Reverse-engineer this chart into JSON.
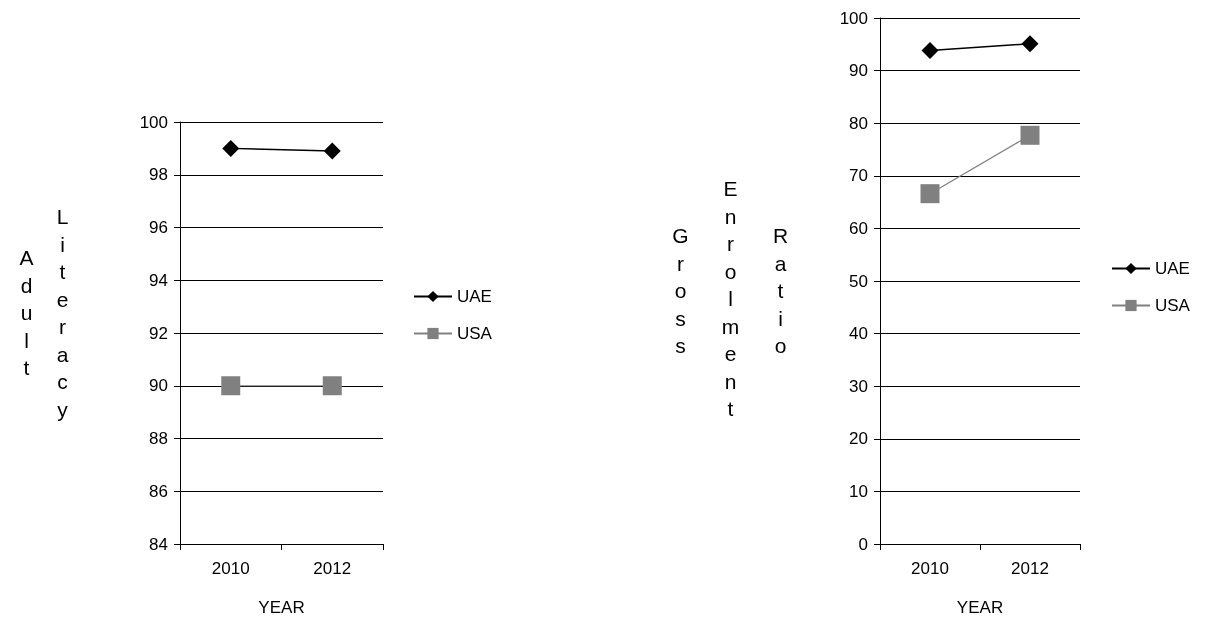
{
  "chart_data": [
    {
      "type": "line",
      "categories": [
        "2010",
        "2012"
      ],
      "xlabel": "YEAR",
      "ylabel": "Adult Literacy",
      "ylim": [
        84,
        100
      ],
      "yticks": [
        84,
        86,
        88,
        90,
        92,
        94,
        96,
        98,
        100
      ],
      "grid": "y",
      "legend": "right",
      "series": [
        {
          "name": "UAE",
          "color": "#000000",
          "marker": "diamond",
          "values": [
            99.0,
            98.9
          ]
        },
        {
          "name": "USA",
          "color": "#808080",
          "marker": "square",
          "values": [
            90.0,
            90.0
          ]
        }
      ]
    },
    {
      "type": "line",
      "categories": [
        "2010",
        "2012"
      ],
      "xlabel": "YEAR",
      "ylabel": "Gross Enrolment Ratio",
      "ylim": [
        0,
        100
      ],
      "yticks": [
        0,
        10,
        20,
        30,
        40,
        50,
        60,
        70,
        80,
        90,
        100
      ],
      "grid": "y",
      "legend": "right",
      "series": [
        {
          "name": "UAE",
          "color": "#000000",
          "marker": "diamond",
          "values": [
            93.8,
            95.1
          ]
        },
        {
          "name": "USA",
          "color": "#808080",
          "marker": "square",
          "values": [
            66.6,
            77.7
          ]
        }
      ]
    }
  ]
}
